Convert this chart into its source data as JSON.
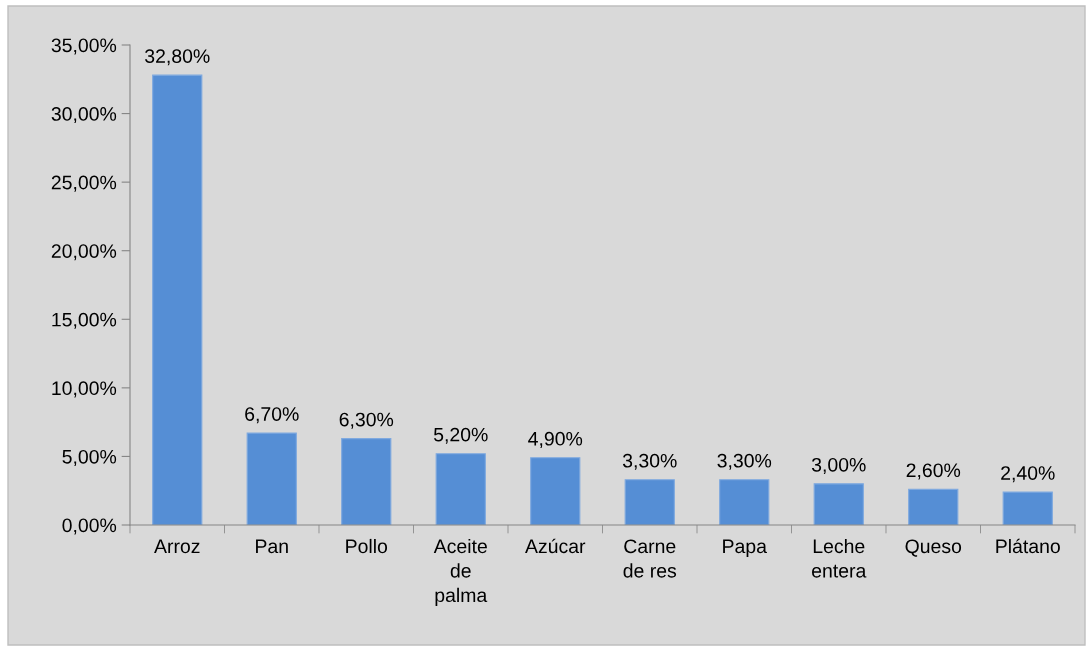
{
  "chart_data": {
    "type": "bar",
    "categories": [
      "Arroz",
      "Pan",
      "Pollo",
      "Aceite de palma",
      "Azúcar",
      "Carne de res",
      "Papa",
      "Leche entera",
      "Queso",
      "Plátano"
    ],
    "values": [
      32.8,
      6.7,
      6.3,
      5.2,
      4.9,
      3.3,
      3.3,
      3.0,
      2.6,
      2.4
    ],
    "value_labels": [
      "32,80%",
      "6,70%",
      "6,30%",
      "5,20%",
      "4,90%",
      "3,30%",
      "3,30%",
      "3,00%",
      "2,60%",
      "2,40%"
    ],
    "color": "#558ed5",
    "ylim": [
      0,
      35
    ],
    "yticks": [
      {
        "value": 0,
        "label": "0,00%"
      },
      {
        "value": 5,
        "label": "5,00%"
      },
      {
        "value": 10,
        "label": "10,00%"
      },
      {
        "value": 15,
        "label": "15,00%"
      },
      {
        "value": 20,
        "label": "20,00%"
      },
      {
        "value": 25,
        "label": "25,00%"
      },
      {
        "value": 30,
        "label": "30,00%"
      },
      {
        "value": 35,
        "label": "35,00%"
      }
    ],
    "grid": false,
    "legend": false
  }
}
